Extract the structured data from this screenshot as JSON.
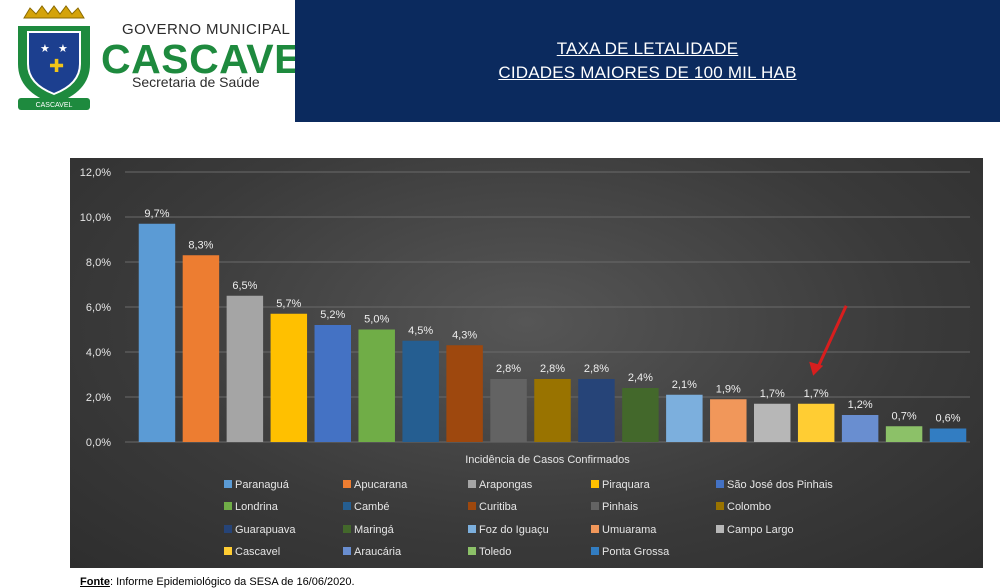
{
  "header": {
    "gov_label": "GOVERNO MUNICIPAL",
    "city_label": "CASCAVEL",
    "dept_label": "Secretaria de Saúde",
    "crest_ribbon": "CASCAVEL",
    "title_line1": "TAXA DE LETALIDADE",
    "title_line2": "CIDADES MAIORES DE 100 MIL HAB",
    "panel_color": "#0b2a5e",
    "brand_green": "#1e8a3e"
  },
  "chart_data": {
    "type": "bar",
    "xlabel": "Incidência de Casos Confirmados",
    "ylim": [
      0,
      12
    ],
    "yticks": [
      "0,0%",
      "2,0%",
      "4,0%",
      "6,0%",
      "8,0%",
      "10,0%",
      "12,0%"
    ],
    "yticks_values": [
      0,
      2,
      4,
      6,
      8,
      10,
      12
    ],
    "grid": true,
    "legend_position": "bottom",
    "highlight": {
      "category": "Cascavel",
      "marker": "red-arrow",
      "color": "#d81e1e"
    },
    "categories": [
      "Paranaguá",
      "Apucarana",
      "Arapongas",
      "Piraquara",
      "São José dos Pinhais",
      "Londrina",
      "Cambé",
      "Curitiba",
      "Pinhais",
      "Colombo",
      "Guarapuava",
      "Maringá",
      "Foz do Iguaçu",
      "Umuarama",
      "Campo Largo",
      "Cascavel",
      "Araucária",
      "Toledo",
      "Ponta Grossa"
    ],
    "values": [
      9.7,
      8.3,
      6.5,
      5.7,
      5.2,
      5.0,
      4.5,
      4.3,
      2.8,
      2.8,
      2.8,
      2.4,
      2.1,
      1.9,
      1.7,
      1.7,
      1.2,
      0.7,
      0.6
    ],
    "labels": [
      "9,7%",
      "8,3%",
      "6,5%",
      "5,7%",
      "5,2%",
      "5,0%",
      "4,5%",
      "4,3%",
      "2,8%",
      "2,8%",
      "2,8%",
      "2,4%",
      "2,1%",
      "1,9%",
      "1,7%",
      "1,7%",
      "1,2%",
      "0,7%",
      "0,6%"
    ],
    "colors": [
      "#5b9bd5",
      "#ed7d31",
      "#a5a5a5",
      "#ffc000",
      "#4472c4",
      "#70ad47",
      "#255e91",
      "#9e480e",
      "#636363",
      "#997300",
      "#264478",
      "#43682b",
      "#7cafdd",
      "#f1975a",
      "#b7b7b7",
      "#ffcd33",
      "#698ed0",
      "#8cc168",
      "#327dc2"
    ]
  },
  "footer": {
    "source_label": "Fonte",
    "source_text": ": Informe Epidemiológico da SESA de 16/06/2020."
  }
}
